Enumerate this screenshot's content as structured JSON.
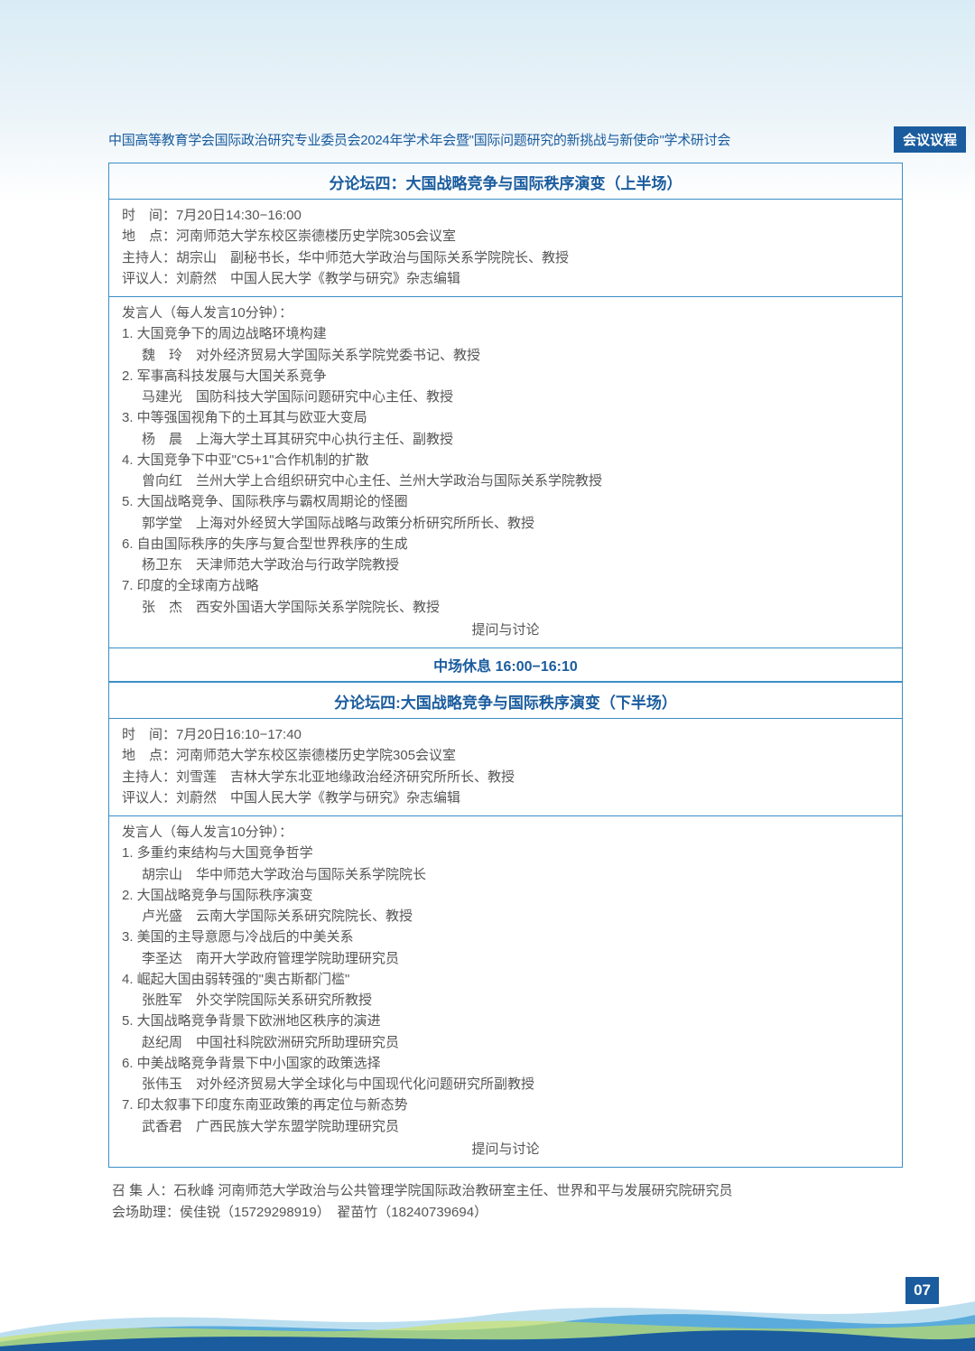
{
  "header": {
    "text": "中国高等教育学会国际政治研究专业委员会2024年学术年会暨\"国际问题研究的新挑战与新使命\"学术研讨会",
    "badge": "会议议程"
  },
  "sessions": [
    {
      "title": "分论坛四：大国战略竞争与国际秩序演变（上半场）",
      "meta": {
        "time_label": "时　间：",
        "time_value": "7月20日14:30−16:00",
        "place_label": "地　点：",
        "place_value": "河南师范大学东校区崇德楼历史学院305会议室",
        "host_label": "主持人：",
        "host_value": "胡宗山　副秘书长，华中师范大学政治与国际关系学院院长、教授",
        "reviewer_label": "评议人：",
        "reviewer_value": "刘蔚然　中国人民大学《教学与研究》杂志编辑"
      },
      "speakers_head": "发言人（每人发言10分钟）：",
      "speakers": [
        {
          "t": "1. 大国竞争下的周边战略环境构建",
          "n": "魏　玲　对外经济贸易大学国际关系学院党委书记、教授"
        },
        {
          "t": "2. 军事高科技发展与大国关系竞争",
          "n": "马建光　国防科技大学国际问题研究中心主任、教授"
        },
        {
          "t": "3. 中等强国视角下的土耳其与欧亚大变局",
          "n": "杨　晨　上海大学土耳其研究中心执行主任、副教授"
        },
        {
          "t": "4. 大国竞争下中亚\"C5+1\"合作机制的扩散",
          "n": "曾向红　兰州大学上合组织研究中心主任、兰州大学政治与国际关系学院教授"
        },
        {
          "t": "5. 大国战略竞争、国际秩序与霸权周期论的怪圈",
          "n": "郭学堂　上海对外经贸大学国际战略与政策分析研究所所长、教授"
        },
        {
          "t": "6. 自由国际秩序的失序与复合型世界秩序的生成",
          "n": "杨卫东　天津师范大学政治与行政学院教授"
        },
        {
          "t": "7. 印度的全球南方战略",
          "n": "张　杰　西安外国语大学国际关系学院院长、教授"
        }
      ],
      "qa": "提问与讨论"
    },
    {
      "title": "分论坛四:大国战略竞争与国际秩序演变（下半场）",
      "meta": {
        "time_label": "时　间：",
        "time_value": "7月20日16:10−17:40",
        "place_label": "地　点：",
        "place_value": "河南师范大学东校区崇德楼历史学院305会议室",
        "host_label": "主持人：",
        "host_value": "刘雪莲　吉林大学东北亚地缘政治经济研究所所长、教授",
        "reviewer_label": "评议人：",
        "reviewer_value": "刘蔚然　中国人民大学《教学与研究》杂志编辑"
      },
      "speakers_head": "发言人（每人发言10分钟）：",
      "speakers": [
        {
          "t": "1. 多重约束结构与大国竞争哲学",
          "n": "胡宗山　华中师范大学政治与国际关系学院院长"
        },
        {
          "t": "2. 大国战略竞争与国际秩序演变",
          "n": "卢光盛　云南大学国际关系研究院院长、教授"
        },
        {
          "t": "3. 美国的主导意愿与冷战后的中美关系",
          "n": "李圣达　南开大学政府管理学院助理研究员"
        },
        {
          "t": "4. 崛起大国由弱转强的\"奥古斯都门槛\"",
          "n": "张胜军　外交学院国际关系研究所教授"
        },
        {
          "t": "5. 大国战略竞争背景下欧洲地区秩序的演进",
          "n": "赵纪周　中国社科院欧洲研究所助理研究员"
        },
        {
          "t": "6. 中美战略竞争背景下中小国家的政策选择",
          "n": "张伟玉　对外经济贸易大学全球化与中国现代化问题研究所副教授"
        },
        {
          "t": "7. 印太叙事下印度东南亚政策的再定位与新态势",
          "n": "武香君　广西民族大学东盟学院助理研究员"
        }
      ],
      "qa": "提问与讨论"
    }
  ],
  "break_text": "中场休息 16:00−16:10",
  "footer": {
    "line1": "召 集 人：石秋峰  河南师范大学政治与公共管理学院国际政治教研室主任、世界和平与发展研究院研究员",
    "line2": "会场助理：侯佳锐（15729298919）　翟苗竹（18240739694）"
  },
  "page_number": "07",
  "colors": {
    "accent": "#1a5c9e",
    "border": "#3a8ec7",
    "text": "#555555",
    "bg_top": "#d9ecf5"
  }
}
